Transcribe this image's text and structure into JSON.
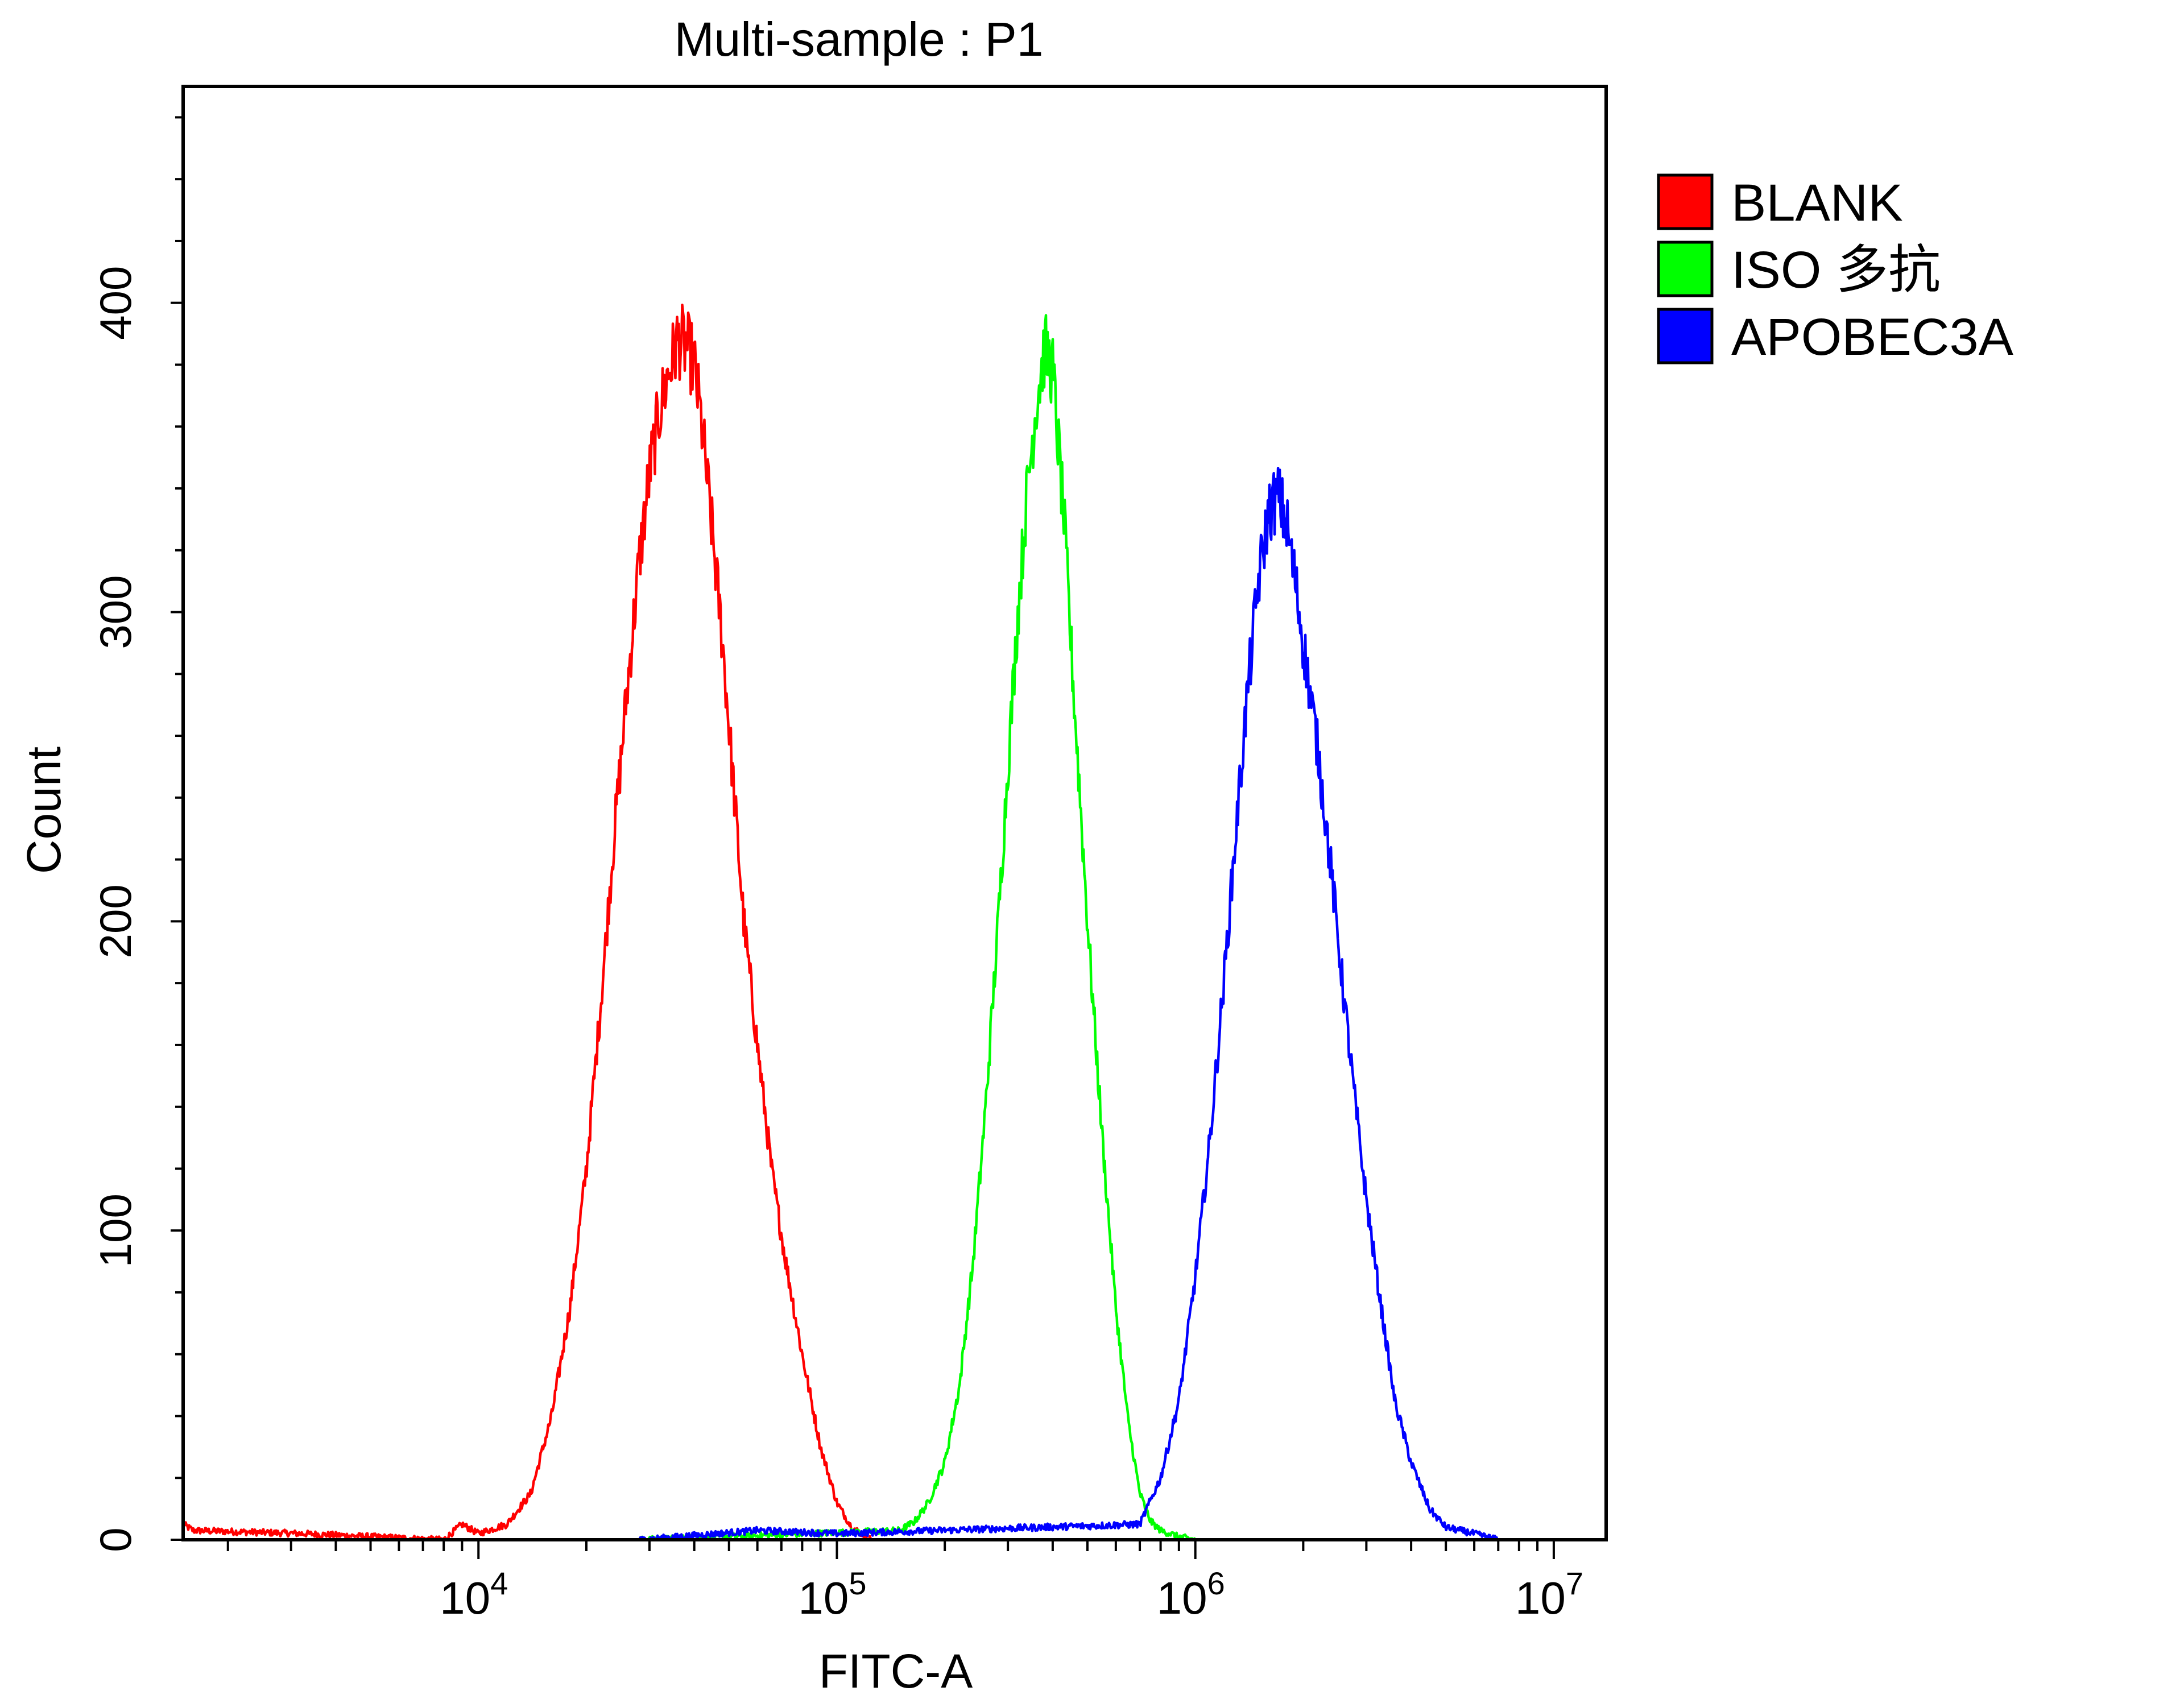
{
  "chart_data": {
    "type": "line",
    "subtype": "histogram",
    "title": "Multi-sample : P1",
    "xlabel": "FITC-A",
    "ylabel": "Count",
    "x_scale": "log",
    "xlim": [
      1500,
      14000000
    ],
    "ylim": [
      0,
      470
    ],
    "grid": false,
    "legend_position": "top-right",
    "x_ticks": [
      {
        "value": 10000,
        "base": "10",
        "exp": "4"
      },
      {
        "value": 100000,
        "base": "10",
        "exp": "5"
      },
      {
        "value": 1000000,
        "base": "10",
        "exp": "6"
      },
      {
        "value": 10000000,
        "base": "10",
        "exp": "7"
      }
    ],
    "y_ticks": [
      0,
      100,
      200,
      300,
      400
    ],
    "y_minor_step": 20,
    "series": [
      {
        "name": "BLANK",
        "color": "#ff0000",
        "x": [
          1500,
          1600,
          3200,
          8000,
          9000,
          10000,
          12000,
          14000,
          16000,
          18000,
          20000,
          22000,
          24000,
          26000,
          28000,
          30000,
          32000,
          34000,
          36000,
          38000,
          40000,
          42000,
          45000,
          48000,
          51000,
          55000,
          60000,
          66000,
          72000,
          80000,
          90000,
          100000,
          110000,
          125000
        ],
        "y": [
          5,
          3,
          2,
          0,
          5,
          2,
          5,
          15,
          40,
          75,
          120,
          175,
          230,
          275,
          315,
          345,
          365,
          378,
          388,
          386,
          380,
          360,
          325,
          290,
          250,
          200,
          160,
          118,
          90,
          60,
          30,
          12,
          4,
          0
        ]
      },
      {
        "name": "ISO 多抗",
        "color": "#00ff00",
        "x": [
          28000,
          150000,
          165000,
          180000,
          200000,
          220000,
          240000,
          260000,
          280000,
          300000,
          320000,
          340000,
          360000,
          380000,
          400000,
          430000,
          460000,
          500000,
          550000,
          600000,
          650000,
          700000,
          750000,
          800000,
          900000,
          1000000
        ],
        "y": [
          0,
          3,
          6,
          12,
          25,
          50,
          90,
          140,
          195,
          250,
          300,
          340,
          368,
          385,
          378,
          330,
          270,
          200,
          130,
          75,
          38,
          15,
          6,
          3,
          1,
          0
        ],
        "extra_noise": true
      },
      {
        "name": "APOBEC3A",
        "color": "#0000ff",
        "x": [
          28000,
          60000,
          100000,
          700000,
          800000,
          900000,
          1000000,
          1100000,
          1200000,
          1300000,
          1400000,
          1500000,
          1600000,
          1700000,
          1800000,
          1900000,
          2000000,
          2200000,
          2400000,
          2600000,
          2800000,
          3000000,
          3300000,
          3600000,
          4000000,
          4500000,
          5000000,
          6000000,
          7000000
        ],
        "y": [
          0,
          3,
          2,
          5,
          20,
          45,
          85,
          130,
          180,
          230,
          275,
          310,
          332,
          338,
          328,
          310,
          290,
          255,
          215,
          175,
          140,
          110,
          75,
          45,
          25,
          10,
          4,
          2,
          0
        ]
      }
    ]
  }
}
